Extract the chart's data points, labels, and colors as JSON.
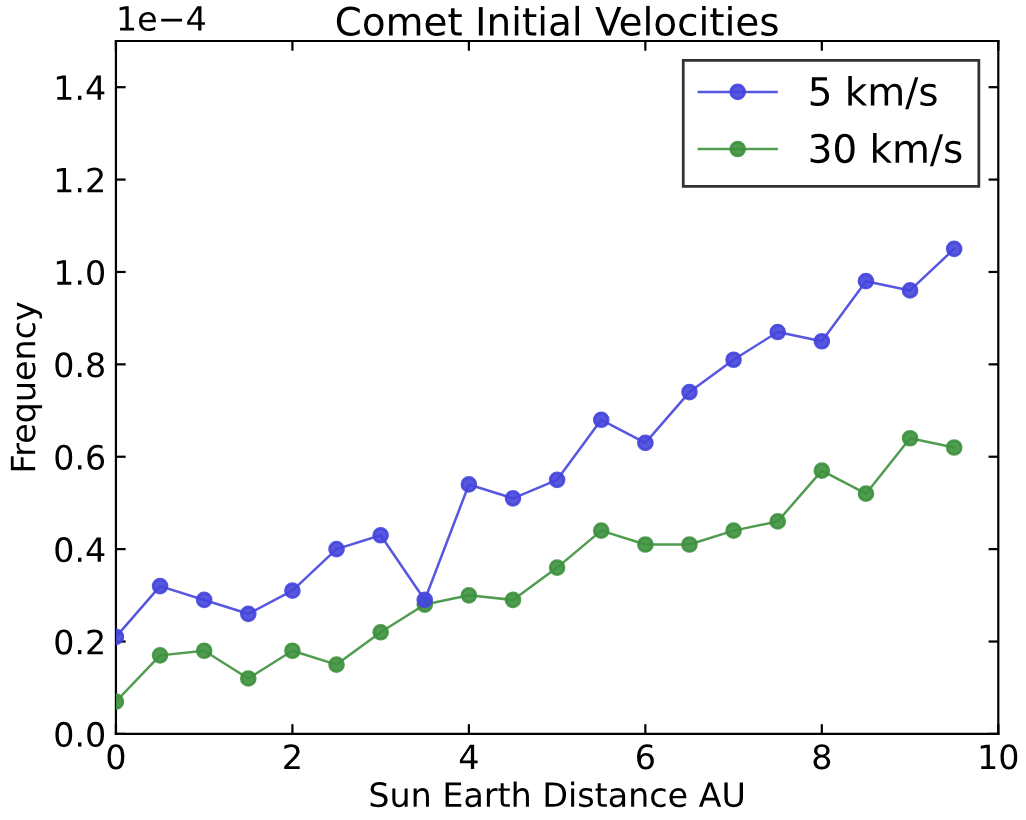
{
  "chart_data": {
    "type": "line",
    "title": "Comet Initial Velocities",
    "xlabel": "Sun Earth Distance AU",
    "ylabel": "Frequency",
    "annotations": [
      "1e−4"
    ],
    "x": [
      0,
      0.5,
      1,
      1.5,
      2,
      2.5,
      3,
      3.5,
      4,
      4.5,
      5,
      5.5,
      6,
      6.5,
      7,
      7.5,
      8,
      8.5,
      9,
      9.5
    ],
    "series": [
      {
        "name": "5 km/s",
        "color": "#4545dd",
        "values": [
          0.21,
          0.32,
          0.29,
          0.26,
          0.31,
          0.4,
          0.43,
          0.29,
          0.54,
          0.51,
          0.55,
          0.68,
          0.63,
          0.74,
          0.81,
          0.87,
          0.85,
          0.98,
          0.96,
          1.05
        ]
      },
      {
        "name": "30 km/s",
        "color": "#3d913d",
        "values": [
          0.07,
          0.17,
          0.18,
          0.12,
          0.18,
          0.15,
          0.22,
          0.28,
          0.3,
          0.29,
          0.36,
          0.44,
          0.41,
          0.41,
          0.44,
          0.46,
          0.57,
          0.52,
          0.64,
          0.62
        ]
      }
    ],
    "xlim": [
      0,
      10
    ],
    "xticks": [
      0,
      2,
      4,
      6,
      8,
      10
    ],
    "ylim": [
      0,
      1.5
    ],
    "yticks": [
      {
        "value": 0,
        "label": "0.0"
      },
      {
        "value": 0.2,
        "label": "0.2"
      },
      {
        "value": 0.4,
        "label": "0.4"
      },
      {
        "value": 0.6,
        "label": "0.6"
      },
      {
        "value": 0.8,
        "label": "0.8"
      },
      {
        "value": 1.0,
        "label": "1.0"
      },
      {
        "value": 1.2,
        "label": "1.2"
      },
      {
        "value": 1.4,
        "label": "1.4"
      }
    ],
    "marker": "circle",
    "line_style": "solid",
    "legend": "top right",
    "grid": false
  }
}
